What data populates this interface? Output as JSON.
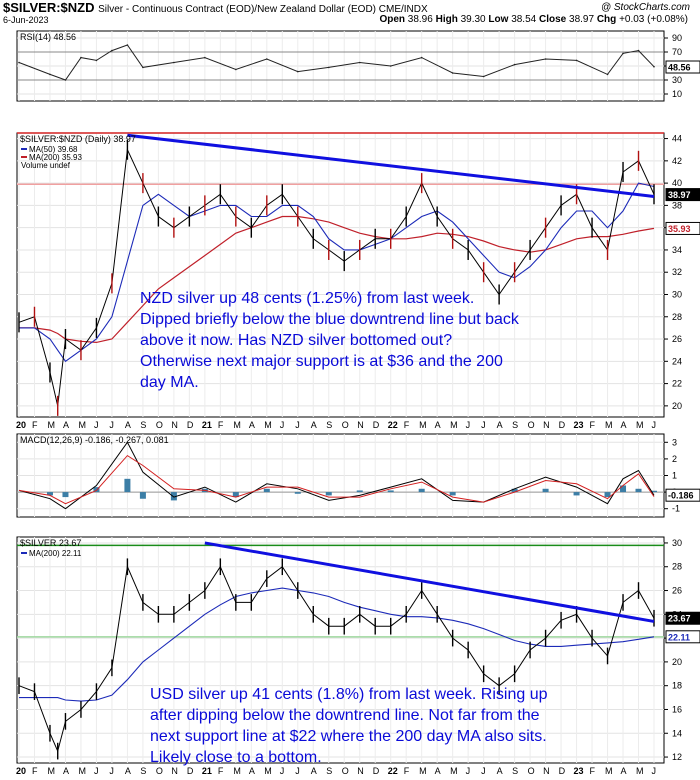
{
  "header": {
    "symbol": "$SILVER:$NZD",
    "description": "Silver - Continuous Contract (EOD)/New Zealand Dollar (EOD)  CME/INDX",
    "brand": "@ StockCharts.com",
    "date": "6-Jun-2023",
    "open_label": "Open",
    "open": "38.96",
    "high_label": "High",
    "high": "39.30",
    "low_label": "Low",
    "low": "38.54",
    "close_label": "Close",
    "close": "38.97",
    "chg_label": "Chg",
    "chg": "+0.03 (+0.08%)"
  },
  "annotations": {
    "nzd": [
      "NZD silver up 48 cents (1.25%) from last week.",
      "Dipped briefly below the blue downtrend line but back",
      "above it now. Has NZD silver bottomed out?",
      "Otherwise next major support is at $36 and the 200",
      "day MA."
    ],
    "usd": [
      "USD silver up 41 cents (1.8%) from last week. Rising up",
      "after dipping below the downtrend line. Not far from the",
      "next support line at $22 where the 200 day MA also sits.",
      "Likely close to a bottom."
    ]
  },
  "chart_data": [
    {
      "type": "line",
      "panel": "rsi",
      "title": "RSI(14) 48.56",
      "y_ticks": [
        "90",
        "70",
        "50",
        "30",
        "10"
      ],
      "ylim": [
        0,
        100
      ],
      "last_value": "48.56",
      "reference_levels": [
        70,
        30
      ],
      "x": [
        "2020-01",
        "2020-03",
        "2020-04",
        "2020-05",
        "2020-06",
        "2020-07",
        "2020-08",
        "2020-09",
        "2020-11",
        "2021-01",
        "2021-03",
        "2021-05",
        "2021-07",
        "2021-09",
        "2021-11",
        "2022-01",
        "2022-03",
        "2022-05",
        "2022-07",
        "2022-09",
        "2022-11",
        "2023-01",
        "2023-03",
        "2023-04",
        "2023-05",
        "2023-06"
      ],
      "values": [
        55,
        38,
        30,
        62,
        58,
        72,
        80,
        48,
        55,
        62,
        45,
        60,
        42,
        48,
        55,
        50,
        62,
        40,
        35,
        52,
        60,
        58,
        38,
        68,
        72,
        49
      ]
    },
    {
      "type": "line",
      "panel": "price_nzd",
      "title": "$SILVER:$NZD (Daily) 38.97",
      "legend": [
        "MA(50) 39.68",
        "MA(200) 35.93",
        "Volume undef"
      ],
      "y_ticks": [
        "44",
        "42",
        "40",
        "38",
        "36",
        "34",
        "32",
        "30",
        "28",
        "26",
        "24",
        "22",
        "20"
      ],
      "ylim": [
        19,
        44.5
      ],
      "last_value": "38.97",
      "ma200_label": "35.93",
      "horizontal_lines": [
        {
          "value": 44.5,
          "color": "#d42020"
        },
        {
          "value": 39.9,
          "color": "#f0a0a0"
        }
      ],
      "trend_line": {
        "from": [
          "2020-08",
          44.3
        ],
        "to": [
          "2023-06",
          38.8
        ]
      },
      "x": [
        "2020-01",
        "2020-02",
        "2020-03",
        "2020-03b",
        "2020-04",
        "2020-05",
        "2020-06",
        "2020-07",
        "2020-08",
        "2020-09",
        "2020-10",
        "2020-11",
        "2020-12",
        "2021-01",
        "2021-02",
        "2021-03",
        "2021-04",
        "2021-05",
        "2021-06",
        "2021-07",
        "2021-08",
        "2021-09",
        "2021-10",
        "2021-11",
        "2021-12",
        "2022-01",
        "2022-02",
        "2022-03",
        "2022-04",
        "2022-05",
        "2022-06",
        "2022-07",
        "2022-08",
        "2022-09",
        "2022-10",
        "2022-11",
        "2022-12",
        "2023-01",
        "2023-02",
        "2023-03",
        "2023-04",
        "2023-05",
        "2023-06"
      ],
      "price": [
        27.5,
        28,
        23,
        20,
        26,
        25,
        27,
        31,
        43,
        40,
        37,
        36,
        37,
        38,
        39,
        37,
        36,
        38,
        39,
        37,
        35,
        34,
        33,
        34,
        35,
        35,
        37,
        40,
        37,
        35,
        34,
        32,
        30,
        32,
        34,
        36,
        38,
        39,
        36,
        34,
        41,
        42,
        39
      ],
      "ma50": [
        27,
        27,
        26,
        25,
        24,
        25,
        26,
        28,
        33,
        38,
        39,
        38,
        37,
        37.5,
        38,
        38,
        37,
        37,
        38,
        38,
        37,
        35,
        34,
        34,
        34.5,
        35,
        36,
        37,
        37.5,
        36.5,
        35,
        33.5,
        32,
        31.5,
        32.5,
        34,
        36,
        37.5,
        37.5,
        36,
        37.5,
        40,
        39.7
      ],
      "ma200": [
        27,
        27,
        26.8,
        26.5,
        26,
        25.8,
        25.7,
        26,
        27.5,
        29,
        30.5,
        31.5,
        32.5,
        33.5,
        34.5,
        35.5,
        36,
        36.5,
        37,
        37,
        36.8,
        36.5,
        36,
        35.5,
        35.2,
        35,
        35,
        35.2,
        35.5,
        35.4,
        35.2,
        34.8,
        34.3,
        34,
        33.8,
        34,
        34.5,
        35,
        35.2,
        35.2,
        35.4,
        35.7,
        35.93
      ]
    },
    {
      "type": "line",
      "panel": "macd",
      "title": "MACD(12,26,9) -0.186, -0.267, 0.081",
      "y_ticks": [
        "3",
        "2",
        "1",
        "0",
        "-1"
      ],
      "ylim": [
        -1.5,
        3.5
      ],
      "last_value": "-0.186",
      "x": [
        "2020-01",
        "2020-03",
        "2020-04",
        "2020-06",
        "2020-08",
        "2020-09",
        "2020-11",
        "2021-01",
        "2021-03",
        "2021-05",
        "2021-07",
        "2021-09",
        "2021-11",
        "2022-01",
        "2022-03",
        "2022-05",
        "2022-07",
        "2022-09",
        "2022-11",
        "2023-01",
        "2023-03",
        "2023-04",
        "2023-05",
        "2023-06"
      ],
      "macd": [
        0.1,
        -0.4,
        -1.0,
        0.4,
        3.0,
        1.2,
        -0.3,
        0.3,
        -0.6,
        0.5,
        0.2,
        -0.5,
        -0.2,
        0.3,
        0.8,
        -0.5,
        -0.6,
        0.2,
        0.9,
        0.3,
        -0.7,
        0.8,
        1.3,
        -0.19
      ],
      "signal": [
        0.1,
        -0.2,
        -0.7,
        0.1,
        2.2,
        1.6,
        0.2,
        0.1,
        -0.3,
        0.3,
        0.3,
        -0.3,
        -0.3,
        0.2,
        0.6,
        -0.3,
        -0.6,
        0.0,
        0.7,
        0.5,
        -0.4,
        0.4,
        1.1,
        -0.27
      ]
    },
    {
      "type": "line",
      "panel": "price_usd",
      "title": "$SILVER 23.67",
      "legend": [
        "MA(200) 22.11"
      ],
      "y_ticks": [
        "30",
        "28",
        "26",
        "24",
        "22",
        "20",
        "18",
        "16",
        "14",
        "12"
      ],
      "ylim": [
        11.5,
        30.5
      ],
      "last_value": "23.67",
      "ma200_label": "22.11",
      "horizontal_lines": [
        {
          "value": 29.8,
          "color": "#1a8c1a"
        },
        {
          "value": 22.1,
          "color": "#9fd89f"
        }
      ],
      "trend_line": {
        "from": [
          "2021-01",
          30
        ],
        "to": [
          "2023-06",
          23.4
        ]
      },
      "x_labels": [
        "20",
        "F",
        "M",
        "A",
        "M",
        "J",
        "J",
        "A",
        "S",
        "O",
        "N",
        "D",
        "21",
        "F",
        "M",
        "A",
        "M",
        "J",
        "J",
        "A",
        "S",
        "O",
        "N",
        "D",
        "22",
        "F",
        "M",
        "A",
        "M",
        "J",
        "J",
        "A",
        "S",
        "O",
        "N",
        "D",
        "23",
        "F",
        "M",
        "A",
        "M",
        "J"
      ],
      "x": [
        "2020-01",
        "2020-02",
        "2020-03",
        "2020-03b",
        "2020-04",
        "2020-05",
        "2020-06",
        "2020-07",
        "2020-08",
        "2020-09",
        "2020-10",
        "2020-11",
        "2020-12",
        "2021-01",
        "2021-02",
        "2021-03",
        "2021-04",
        "2021-05",
        "2021-06",
        "2021-07",
        "2021-08",
        "2021-09",
        "2021-10",
        "2021-11",
        "2021-12",
        "2022-01",
        "2022-02",
        "2022-03",
        "2022-04",
        "2022-05",
        "2022-06",
        "2022-07",
        "2022-08",
        "2022-09",
        "2022-10",
        "2022-11",
        "2022-12",
        "2023-01",
        "2023-02",
        "2023-03",
        "2023-04",
        "2023-05",
        "2023-06"
      ],
      "price": [
        18,
        17.5,
        14,
        12.5,
        15,
        16,
        17.5,
        19.5,
        28,
        25,
        24,
        24,
        25,
        26,
        28,
        25,
        25,
        27,
        28,
        26,
        24,
        23,
        23,
        24,
        23,
        23,
        24,
        26,
        24,
        22,
        21,
        19,
        18,
        19,
        21,
        22,
        23.5,
        24,
        22,
        20.5,
        25,
        26,
        23.67
      ],
      "ma200": [
        17,
        17,
        17,
        17,
        16.8,
        16.7,
        16.8,
        17.2,
        18.5,
        20,
        21,
        22,
        23,
        24,
        24.8,
        25.5,
        25.8,
        26,
        26.2,
        26,
        25.8,
        25.5,
        25,
        24.6,
        24.3,
        24,
        23.8,
        23.8,
        23.7,
        23.5,
        23.2,
        22.8,
        22.3,
        21.8,
        21.5,
        21.3,
        21.3,
        21.4,
        21.5,
        21.6,
        21.7,
        21.9,
        22.11
      ]
    }
  ]
}
